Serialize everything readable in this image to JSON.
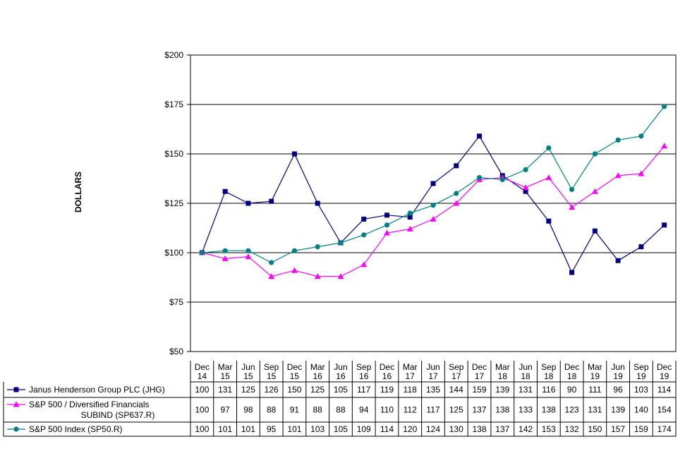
{
  "chart_data": {
    "type": "line",
    "ylabel": "DOLLARS",
    "ylim": [
      50,
      200
    ],
    "yticks": [
      "$50",
      "$75",
      "$100",
      "$125",
      "$150",
      "$175",
      "$200"
    ],
    "ytick_values": [
      50,
      75,
      100,
      125,
      150,
      175,
      200
    ],
    "grid": "horizontal",
    "legend": "table-below",
    "categories": [
      [
        "Dec",
        "14"
      ],
      [
        "Mar",
        "15"
      ],
      [
        "Jun",
        "15"
      ],
      [
        "Sep",
        "15"
      ],
      [
        "Dec",
        "15"
      ],
      [
        "Mar",
        "16"
      ],
      [
        "Jun",
        "16"
      ],
      [
        "Sep",
        "16"
      ],
      [
        "Dec",
        "16"
      ],
      [
        "Mar",
        "17"
      ],
      [
        "Jun",
        "17"
      ],
      [
        "Sep",
        "17"
      ],
      [
        "Dec",
        "17"
      ],
      [
        "Mar",
        "18"
      ],
      [
        "Jun",
        "18"
      ],
      [
        "Sep",
        "18"
      ],
      [
        "Dec",
        "18"
      ],
      [
        "Mar",
        "19"
      ],
      [
        "Jun",
        "19"
      ],
      [
        "Sep",
        "19"
      ],
      [
        "Dec",
        "19"
      ]
    ],
    "series": [
      {
        "name": [
          "Janus Henderson Group PLC (JHG)"
        ],
        "color": "#000080",
        "marker": "square",
        "values": [
          100,
          131,
          125,
          126,
          150,
          125,
          105,
          117,
          119,
          118,
          135,
          144,
          159,
          139,
          131,
          116,
          90,
          111,
          96,
          103,
          114
        ]
      },
      {
        "name": [
          "S&P 500 / Diversified Financials",
          "SUBIND (SP637.R)"
        ],
        "color": "#ff00ff",
        "marker": "triangle",
        "values": [
          100,
          97,
          98,
          88,
          91,
          88,
          88,
          94,
          110,
          112,
          117,
          125,
          137,
          138,
          133,
          138,
          123,
          131,
          139,
          140,
          154
        ]
      },
      {
        "name": [
          "S&P 500 Index (SP50.R)"
        ],
        "color": "#008080",
        "marker": "circle",
        "values": [
          100,
          101,
          101,
          95,
          101,
          103,
          105,
          109,
          114,
          120,
          124,
          130,
          138,
          137,
          142,
          153,
          132,
          150,
          157,
          159,
          174
        ]
      }
    ]
  }
}
